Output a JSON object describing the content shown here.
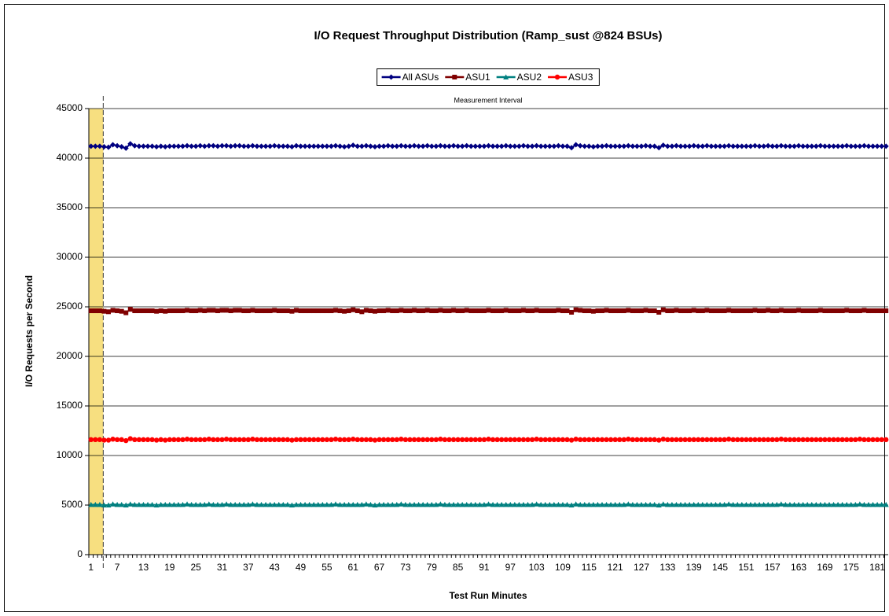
{
  "chart_data": {
    "type": "line",
    "title": "I/O Request Throughput Distribution (Ramp_sust @824 BSUs)",
    "annotation": "Measurement Interval",
    "x_label": "Test Run Minutes",
    "y_label": "I/O Requests per Second",
    "categories": [
      1,
      null,
      null,
      null,
      null,
      null,
      7,
      null,
      null,
      null,
      null,
      null,
      13,
      null,
      null,
      null,
      null,
      null,
      19,
      null,
      null,
      null,
      null,
      null,
      25,
      null,
      null,
      null,
      null,
      null,
      31,
      null,
      null,
      null,
      null,
      null,
      37,
      null,
      null,
      null,
      null,
      null,
      43,
      null,
      null,
      null,
      null,
      null,
      49,
      null,
      null,
      null,
      null,
      null,
      55,
      null,
      null,
      null,
      null,
      null,
      61,
      null,
      null,
      null,
      null,
      null,
      67,
      null,
      null,
      null,
      null,
      null,
      73,
      null,
      null,
      null,
      null,
      null,
      79,
      null,
      null,
      null,
      null,
      null,
      85,
      null,
      null,
      null,
      null,
      null,
      91,
      null,
      null,
      null,
      null,
      null,
      97,
      null,
      null,
      null,
      null,
      null,
      103,
      null,
      null,
      null,
      null,
      null,
      109,
      null,
      null,
      null,
      null,
      null,
      115,
      null,
      null,
      null,
      null,
      null,
      121,
      null,
      null,
      null,
      null,
      null,
      127,
      null,
      null,
      null,
      null,
      null,
      133,
      null,
      null,
      null,
      null,
      null,
      139,
      null,
      null,
      null,
      null,
      null,
      145,
      null,
      null,
      null,
      null,
      null,
      151,
      null,
      null,
      null,
      null,
      null,
      157,
      null,
      null,
      null,
      null,
      null,
      163,
      null,
      null,
      null,
      null,
      null,
      169,
      null,
      null,
      null,
      null,
      null,
      175,
      null,
      null,
      null,
      null,
      null,
      181,
      null,
      null
    ],
    "series": [
      {
        "name": "All ASUs",
        "color": "#000080",
        "values": [
          41200,
          41200,
          41200,
          41150,
          41100,
          41350,
          41250,
          41150,
          41000,
          41450,
          41250,
          41200,
          41200,
          41200,
          41200,
          41150,
          41200,
          41150,
          41200,
          41200,
          41200,
          41200,
          41250,
          41200,
          41200,
          41250,
          41200,
          41250,
          41250,
          41200,
          41250,
          41250,
          41200,
          41250,
          41250,
          41200,
          41200,
          41250,
          41200,
          41200,
          41200,
          41200,
          41250,
          41200,
          41200,
          41200,
          41150,
          41250,
          41200,
          41200,
          41200,
          41200,
          41200,
          41200,
          41200,
          41200,
          41250,
          41200,
          41150,
          41200,
          41300,
          41200,
          41200,
          41250,
          41200,
          41150,
          41200,
          41200,
          41250,
          41200,
          41200,
          41250,
          41200,
          41200,
          41250,
          41200,
          41200,
          41250,
          41200,
          41200,
          41250,
          41200,
          41200,
          41250,
          41200,
          41200,
          41250,
          41200,
          41200,
          41200,
          41200,
          41250,
          41200,
          41200,
          41200,
          41250,
          41200,
          41200,
          41200,
          41250,
          41200,
          41200,
          41250,
          41200,
          41200,
          41200,
          41200,
          41250,
          41200,
          41200,
          41050,
          41350,
          41250,
          41200,
          41200,
          41150,
          41200,
          41200,
          41250,
          41200,
          41200,
          41200,
          41200,
          41250,
          41200,
          41200,
          41200,
          41250,
          41200,
          41200,
          41050,
          41300,
          41200,
          41200,
          41250,
          41200,
          41200,
          41200,
          41250,
          41200,
          41200,
          41250,
          41200,
          41200,
          41200,
          41200,
          41250,
          41200,
          41200,
          41200,
          41200,
          41200,
          41250,
          41200,
          41200,
          41250,
          41200,
          41200,
          41250,
          41200,
          41200,
          41200,
          41250,
          41200,
          41200,
          41200,
          41200,
          41250,
          41200,
          41200,
          41200,
          41200,
          41200,
          41250,
          41200,
          41200,
          41200,
          41250,
          41200,
          41200,
          41200,
          41200,
          41200
        ]
      },
      {
        "name": "ASU1",
        "color": "#800000",
        "values": [
          24600,
          24600,
          24600,
          24550,
          24500,
          24650,
          24600,
          24550,
          24400,
          24750,
          24600,
          24600,
          24600,
          24600,
          24600,
          24550,
          24600,
          24550,
          24600,
          24600,
          24600,
          24600,
          24650,
          24600,
          24600,
          24650,
          24600,
          24650,
          24650,
          24600,
          24650,
          24650,
          24600,
          24650,
          24650,
          24600,
          24600,
          24650,
          24600,
          24600,
          24600,
          24600,
          24650,
          24600,
          24600,
          24600,
          24550,
          24650,
          24600,
          24600,
          24600,
          24600,
          24600,
          24600,
          24600,
          24600,
          24650,
          24600,
          24550,
          24600,
          24700,
          24600,
          24500,
          24650,
          24600,
          24550,
          24600,
          24600,
          24650,
          24600,
          24600,
          24650,
          24600,
          24600,
          24650,
          24600,
          24600,
          24650,
          24600,
          24600,
          24650,
          24600,
          24600,
          24650,
          24600,
          24600,
          24650,
          24600,
          24600,
          24600,
          24600,
          24650,
          24600,
          24600,
          24600,
          24650,
          24600,
          24600,
          24600,
          24650,
          24600,
          24600,
          24650,
          24600,
          24600,
          24600,
          24600,
          24650,
          24600,
          24600,
          24450,
          24700,
          24650,
          24600,
          24600,
          24550,
          24600,
          24600,
          24650,
          24600,
          24600,
          24600,
          24600,
          24650,
          24600,
          24600,
          24600,
          24650,
          24600,
          24600,
          24450,
          24700,
          24600,
          24600,
          24650,
          24600,
          24600,
          24600,
          24650,
          24600,
          24600,
          24650,
          24600,
          24600,
          24600,
          24600,
          24650,
          24600,
          24600,
          24600,
          24600,
          24600,
          24650,
          24600,
          24600,
          24650,
          24600,
          24600,
          24650,
          24600,
          24600,
          24600,
          24650,
          24600,
          24600,
          24600,
          24600,
          24650,
          24600,
          24600,
          24600,
          24600,
          24600,
          24650,
          24600,
          24600,
          24600,
          24650,
          24600,
          24600,
          24600,
          24600,
          24600
        ]
      },
      {
        "name": "ASU2",
        "color": "#008080",
        "values": [
          5050,
          5050,
          5050,
          5000,
          5000,
          5100,
          5050,
          5050,
          5000,
          5100,
          5050,
          5050,
          5050,
          5050,
          5050,
          5000,
          5050,
          5050,
          5050,
          5050,
          5050,
          5050,
          5100,
          5050,
          5050,
          5050,
          5050,
          5100,
          5050,
          5050,
          5050,
          5100,
          5050,
          5050,
          5050,
          5050,
          5050,
          5100,
          5050,
          5050,
          5050,
          5050,
          5050,
          5050,
          5050,
          5050,
          5000,
          5050,
          5050,
          5050,
          5050,
          5050,
          5050,
          5050,
          5050,
          5050,
          5100,
          5050,
          5050,
          5050,
          5050,
          5050,
          5050,
          5100,
          5050,
          5000,
          5050,
          5050,
          5050,
          5050,
          5050,
          5100,
          5050,
          5050,
          5050,
          5050,
          5050,
          5050,
          5050,
          5050,
          5100,
          5050,
          5050,
          5050,
          5050,
          5050,
          5050,
          5050,
          5050,
          5050,
          5050,
          5100,
          5050,
          5050,
          5050,
          5050,
          5050,
          5050,
          5050,
          5050,
          5050,
          5050,
          5100,
          5050,
          5050,
          5050,
          5050,
          5050,
          5050,
          5050,
          5000,
          5100,
          5050,
          5050,
          5050,
          5050,
          5050,
          5050,
          5050,
          5050,
          5050,
          5050,
          5050,
          5100,
          5050,
          5050,
          5050,
          5050,
          5050,
          5050,
          5000,
          5100,
          5050,
          5050,
          5050,
          5050,
          5050,
          5050,
          5050,
          5050,
          5050,
          5050,
          5050,
          5050,
          5050,
          5050,
          5100,
          5050,
          5050,
          5050,
          5050,
          5050,
          5050,
          5050,
          5050,
          5050,
          5050,
          5050,
          5100,
          5050,
          5050,
          5050,
          5050,
          5050,
          5050,
          5050,
          5050,
          5050,
          5050,
          5050,
          5050,
          5050,
          5050,
          5050,
          5050,
          5050,
          5100,
          5050,
          5050,
          5050,
          5050,
          5050,
          5050
        ]
      },
      {
        "name": "ASU3",
        "color": "#ff0000",
        "values": [
          11600,
          11600,
          11600,
          11550,
          11550,
          11650,
          11600,
          11600,
          11500,
          11700,
          11600,
          11600,
          11600,
          11600,
          11600,
          11550,
          11600,
          11550,
          11600,
          11600,
          11600,
          11600,
          11650,
          11600,
          11600,
          11600,
          11600,
          11650,
          11600,
          11600,
          11600,
          11650,
          11600,
          11600,
          11600,
          11600,
          11600,
          11650,
          11600,
          11600,
          11600,
          11600,
          11600,
          11600,
          11600,
          11600,
          11550,
          11600,
          11600,
          11600,
          11600,
          11600,
          11600,
          11600,
          11600,
          11600,
          11650,
          11600,
          11600,
          11600,
          11650,
          11600,
          11600,
          11600,
          11600,
          11550,
          11600,
          11600,
          11600,
          11600,
          11600,
          11650,
          11600,
          11600,
          11600,
          11600,
          11600,
          11600,
          11600,
          11600,
          11650,
          11600,
          11600,
          11600,
          11600,
          11600,
          11600,
          11600,
          11600,
          11600,
          11600,
          11650,
          11600,
          11600,
          11600,
          11600,
          11600,
          11600,
          11600,
          11600,
          11600,
          11600,
          11650,
          11600,
          11600,
          11600,
          11600,
          11600,
          11600,
          11600,
          11550,
          11650,
          11600,
          11600,
          11600,
          11600,
          11600,
          11600,
          11600,
          11600,
          11600,
          11600,
          11600,
          11650,
          11600,
          11600,
          11600,
          11600,
          11600,
          11600,
          11550,
          11650,
          11600,
          11600,
          11600,
          11600,
          11600,
          11600,
          11600,
          11600,
          11600,
          11600,
          11600,
          11600,
          11600,
          11600,
          11650,
          11600,
          11600,
          11600,
          11600,
          11600,
          11600,
          11600,
          11600,
          11600,
          11600,
          11600,
          11650,
          11600,
          11600,
          11600,
          11600,
          11600,
          11600,
          11600,
          11600,
          11600,
          11600,
          11600,
          11600,
          11600,
          11600,
          11600,
          11600,
          11600,
          11650,
          11600,
          11600,
          11600,
          11600,
          11600,
          11600
        ]
      }
    ],
    "ylim": [
      0,
      45000
    ],
    "yticks": [
      0,
      5000,
      10000,
      15000,
      20000,
      25000,
      30000,
      35000,
      40000,
      45000
    ],
    "grid": true
  }
}
